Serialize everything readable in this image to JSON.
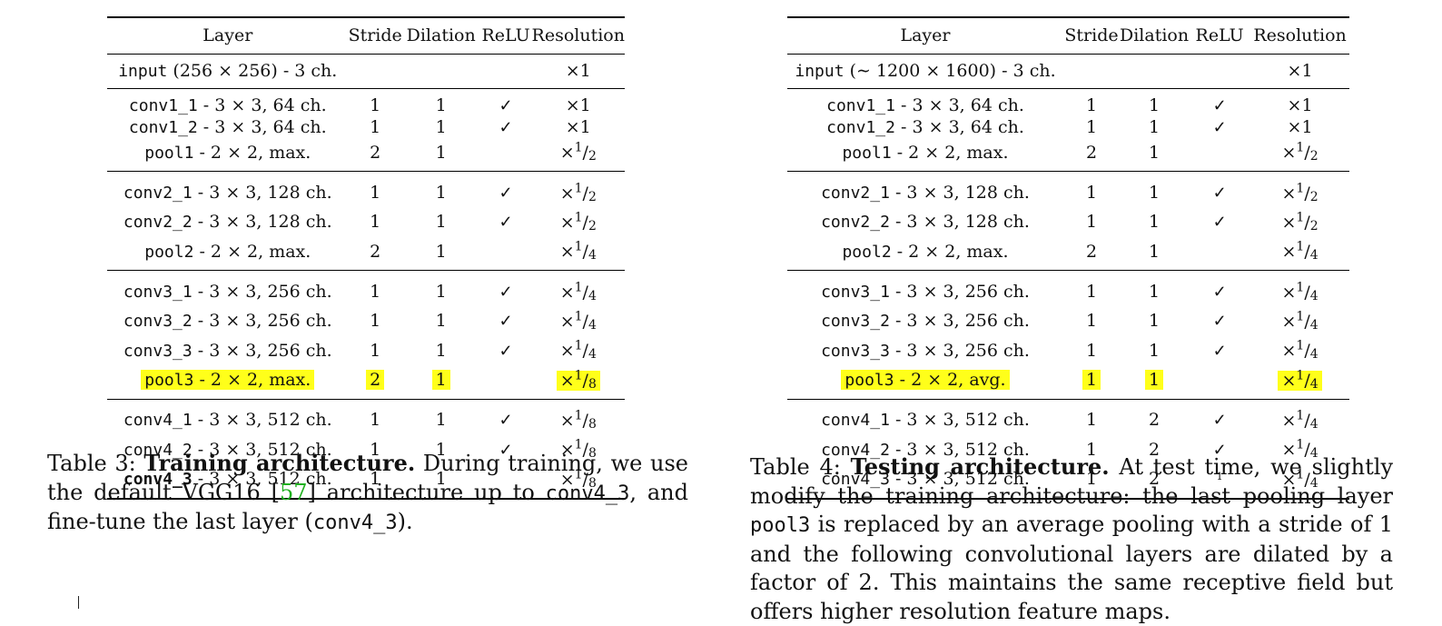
{
  "table3": {
    "headers": [
      "Layer",
      "Stride",
      "Dilation",
      "ReLU",
      "Resolution"
    ],
    "groups": [
      [
        {
          "layer": "input",
          "desc": " (256 × 256) - 3 ch.",
          "stride": "",
          "dilation": "",
          "relu": "",
          "res": "×1"
        }
      ],
      [
        {
          "layer": "conv1_1",
          "desc": " - 3 × 3, 64 ch.",
          "stride": "1",
          "dilation": "1",
          "relu": "✓",
          "res": "×1"
        },
        {
          "layer": "conv1_2",
          "desc": " - 3 × 3, 64 ch.",
          "stride": "1",
          "dilation": "1",
          "relu": "✓",
          "res": "×1"
        },
        {
          "layer": "pool1",
          "desc": " - 2 × 2, max.",
          "stride": "2",
          "dilation": "1",
          "relu": "",
          "res": "×1/2"
        }
      ],
      [
        {
          "layer": "conv2_1",
          "desc": " - 3 × 3, 128 ch.",
          "stride": "1",
          "dilation": "1",
          "relu": "✓",
          "res": "×1/2"
        },
        {
          "layer": "conv2_2",
          "desc": " - 3 × 3, 128 ch.",
          "stride": "1",
          "dilation": "1",
          "relu": "✓",
          "res": "×1/2"
        },
        {
          "layer": "pool2",
          "desc": " - 2 × 2, max.",
          "stride": "2",
          "dilation": "1",
          "relu": "",
          "res": "×1/4"
        }
      ],
      [
        {
          "layer": "conv3_1",
          "desc": " - 3 × 3, 256 ch.",
          "stride": "1",
          "dilation": "1",
          "relu": "✓",
          "res": "×1/4"
        },
        {
          "layer": "conv3_2",
          "desc": " - 3 × 3, 256 ch.",
          "stride": "1",
          "dilation": "1",
          "relu": "✓",
          "res": "×1/4"
        },
        {
          "layer": "conv3_3",
          "desc": " - 3 × 3, 256 ch.",
          "stride": "1",
          "dilation": "1",
          "relu": "✓",
          "res": "×1/4"
        },
        {
          "layer": "pool3",
          "desc": " - 2 × 2, max.",
          "stride": "2",
          "dilation": "1",
          "relu": "",
          "res": "×1/8",
          "highlight": true
        }
      ],
      [
        {
          "layer": "conv4_1",
          "desc": " - 3 × 3, 512 ch.",
          "stride": "1",
          "dilation": "1",
          "relu": "✓",
          "res": "×1/8"
        },
        {
          "layer": "conv4_2",
          "desc": " - 3 × 3, 512 ch.",
          "stride": "1",
          "dilation": "1",
          "relu": "✓",
          "res": "×1/8"
        },
        {
          "layer": "conv4_3",
          "desc": " - 3 × 3, 512 ch.",
          "stride": "1",
          "dilation": "1",
          "relu": "",
          "res": "×1/8",
          "bold": true
        }
      ]
    ]
  },
  "table4": {
    "headers": [
      "Layer",
      "Stride",
      "Dilation",
      "ReLU",
      "Resolution"
    ],
    "groups": [
      [
        {
          "layer": "input",
          "desc": " (∼ 1200 × 1600) - 3 ch.",
          "stride": "",
          "dilation": "",
          "relu": "",
          "res": "×1"
        }
      ],
      [
        {
          "layer": "conv1_1",
          "desc": " - 3 × 3, 64 ch.",
          "stride": "1",
          "dilation": "1",
          "relu": "✓",
          "res": "×1"
        },
        {
          "layer": "conv1_2",
          "desc": " - 3 × 3, 64 ch.",
          "stride": "1",
          "dilation": "1",
          "relu": "✓",
          "res": "×1"
        },
        {
          "layer": "pool1",
          "desc": " - 2 × 2, max.",
          "stride": "2",
          "dilation": "1",
          "relu": "",
          "res": "×1/2"
        }
      ],
      [
        {
          "layer": "conv2_1",
          "desc": " - 3 × 3, 128 ch.",
          "stride": "1",
          "dilation": "1",
          "relu": "✓",
          "res": "×1/2"
        },
        {
          "layer": "conv2_2",
          "desc": " - 3 × 3, 128 ch.",
          "stride": "1",
          "dilation": "1",
          "relu": "✓",
          "res": "×1/2"
        },
        {
          "layer": "pool2",
          "desc": " - 2 × 2, max.",
          "stride": "2",
          "dilation": "1",
          "relu": "",
          "res": "×1/4"
        }
      ],
      [
        {
          "layer": "conv3_1",
          "desc": " - 3 × 3, 256 ch.",
          "stride": "1",
          "dilation": "1",
          "relu": "✓",
          "res": "×1/4"
        },
        {
          "layer": "conv3_2",
          "desc": " - 3 × 3, 256 ch.",
          "stride": "1",
          "dilation": "1",
          "relu": "✓",
          "res": "×1/4"
        },
        {
          "layer": "conv3_3",
          "desc": " - 3 × 3, 256 ch.",
          "stride": "1",
          "dilation": "1",
          "relu": "✓",
          "res": "×1/4"
        },
        {
          "layer": "pool3",
          "desc": " - 2 × 2, avg.",
          "stride": "1",
          "dilation": "1",
          "relu": "",
          "res": "×1/4",
          "highlight": true
        }
      ],
      [
        {
          "layer": "conv4_1",
          "desc": " - 3 × 3, 512 ch.",
          "stride": "1",
          "dilation": "2",
          "relu": "✓",
          "res": "×1/4"
        },
        {
          "layer": "conv4_2",
          "desc": " - 3 × 3, 512 ch.",
          "stride": "1",
          "dilation": "2",
          "relu": "✓",
          "res": "×1/4"
        },
        {
          "layer": "conv4_3",
          "desc": " - 3 × 3, 512 ch.",
          "stride": "1",
          "dilation": "2",
          "relu": "1",
          "res": "×1/4",
          "relu_small": true
        }
      ]
    ]
  },
  "caption3": {
    "label": "Table 3: ",
    "title": "Training architecture.",
    "t1": " During training, we use the default VGG16 [",
    "ref": "57",
    "t2": "] architecture up to ",
    "code1": "conv4_3",
    "t3": ", and fine-tune the last layer (",
    "code2": "conv4_3",
    "t4": ")."
  },
  "caption4": {
    "label": "Table 4: ",
    "title": "Testing architecture.",
    "t1": " At test time, we slightly modify the training architecture: the last pooling layer ",
    "code1": "pool3",
    "t2": " is replaced by an average pooling with a stride of 1 and the following convolutional layers are dilated by a factor of 2. This maintains the same receptive field but offers higher resolution feature maps."
  }
}
